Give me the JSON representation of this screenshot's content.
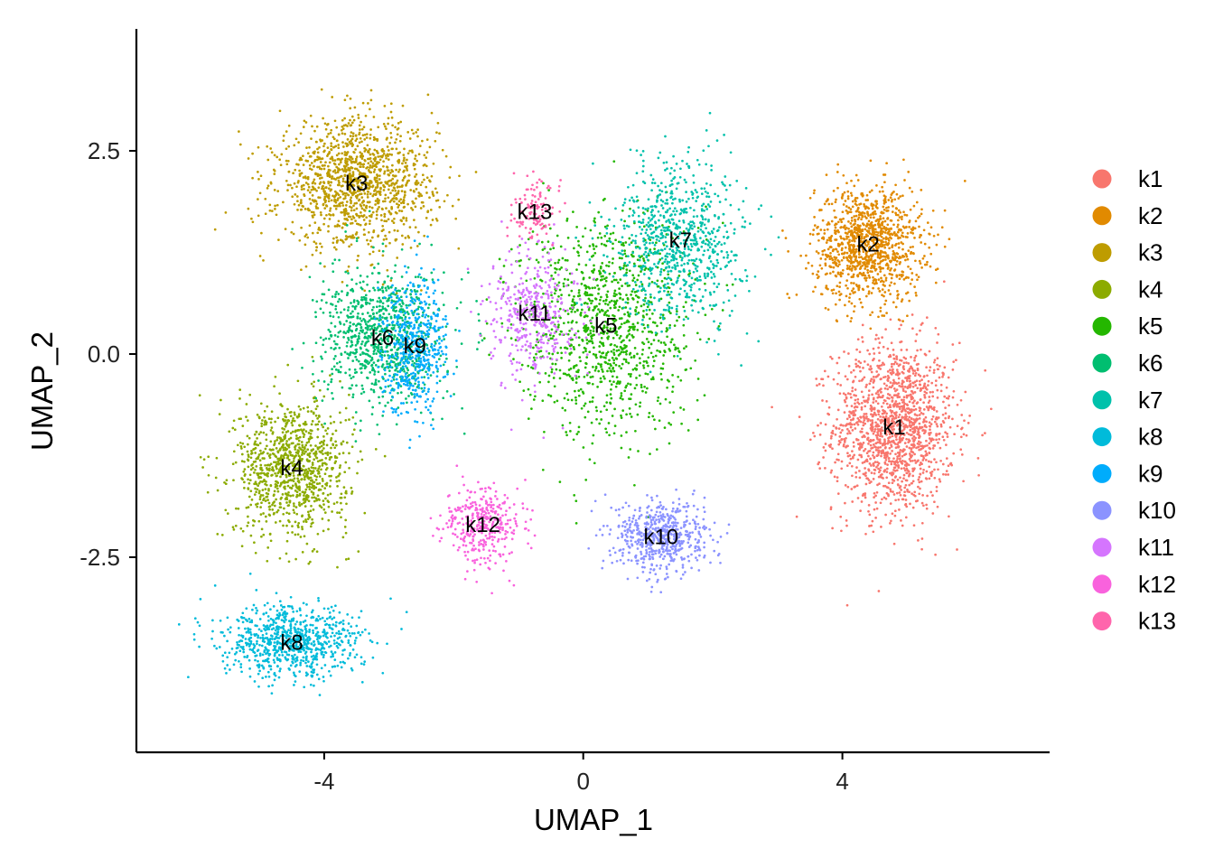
{
  "chart_data": {
    "type": "scatter",
    "title": "",
    "xlabel": "UMAP_1",
    "ylabel": "UMAP_2",
    "xlim": [
      -6.9,
      7.2
    ],
    "ylim": [
      -4.9,
      4.0
    ],
    "x_ticks": [
      -4,
      0,
      4
    ],
    "y_ticks": [
      -2.5,
      0.0,
      2.5
    ],
    "x_tick_labels": [
      "-4",
      "0",
      "4"
    ],
    "y_tick_labels": [
      "-2.5",
      "0.0",
      "2.5"
    ],
    "grid": false,
    "legend_position": "right",
    "series": [
      {
        "name": "k1",
        "color": "#F8766D",
        "label_pos": [
          4.8,
          -0.9
        ],
        "spread": [
          0.85,
          0.95
        ],
        "n": 1500
      },
      {
        "name": "k2",
        "color": "#E18A00",
        "label_pos": [
          4.4,
          1.35
        ],
        "spread": [
          0.75,
          0.65
        ],
        "n": 1100
      },
      {
        "name": "k3",
        "color": "#BE9C00",
        "label_pos": [
          -3.5,
          2.1
        ],
        "spread": [
          1.1,
          0.7
        ],
        "n": 1300
      },
      {
        "name": "k4",
        "color": "#8CAB00",
        "label_pos": [
          -4.5,
          -1.4
        ],
        "spread": [
          0.8,
          0.75
        ],
        "n": 1000
      },
      {
        "name": "k5",
        "color": "#24B700",
        "label_pos": [
          0.35,
          0.35
        ],
        "spread": [
          1.2,
          1.25
        ],
        "n": 1100
      },
      {
        "name": "k6",
        "color": "#00BE70",
        "label_pos": [
          -3.1,
          0.2
        ],
        "spread": [
          0.85,
          0.75
        ],
        "n": 900
      },
      {
        "name": "k7",
        "color": "#00C1AB",
        "label_pos": [
          1.5,
          1.4
        ],
        "spread": [
          0.9,
          0.9
        ],
        "n": 800
      },
      {
        "name": "k8",
        "color": "#00BBDA",
        "label_pos": [
          -4.5,
          -3.55
        ],
        "spread": [
          1.0,
          0.4
        ],
        "n": 800
      },
      {
        "name": "k9",
        "color": "#00ACFC",
        "label_pos": [
          -2.6,
          0.1
        ],
        "spread": [
          0.45,
          0.75
        ],
        "n": 500
      },
      {
        "name": "k10",
        "color": "#8B93FF",
        "label_pos": [
          1.2,
          -2.25
        ],
        "spread": [
          0.65,
          0.4
        ],
        "n": 600
      },
      {
        "name": "k11",
        "color": "#D575FE",
        "label_pos": [
          -0.75,
          0.5
        ],
        "spread": [
          0.6,
          0.7
        ],
        "n": 400
      },
      {
        "name": "k12",
        "color": "#F962DD",
        "label_pos": [
          -1.55,
          -2.1
        ],
        "spread": [
          0.55,
          0.45
        ],
        "n": 350
      },
      {
        "name": "k13",
        "color": "#FF65AC",
        "label_pos": [
          -0.75,
          1.75
        ],
        "spread": [
          0.3,
          0.3
        ],
        "n": 120
      }
    ]
  }
}
